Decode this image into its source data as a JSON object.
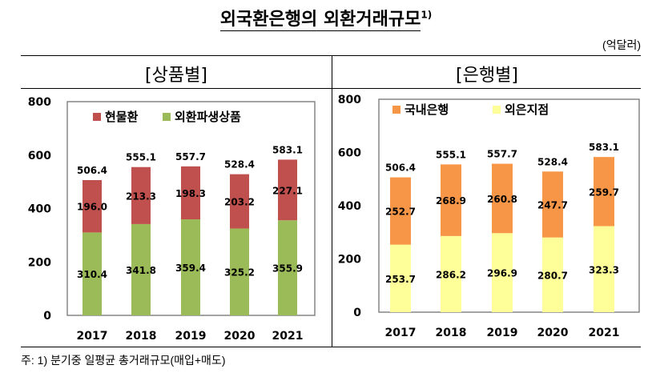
{
  "title": "외국환은행의 외환거래규모",
  "title_footnote_mark": "1)",
  "unit": "(억달러)",
  "footnote": "주: 1) 분기중 일평균 총거래규모(매입+매도)",
  "chart_data": [
    {
      "type": "bar",
      "stacked": true,
      "panel_title": "[상품별]",
      "categories": [
        "2017",
        "2018",
        "2019",
        "2020",
        "2021"
      ],
      "ylim": [
        0,
        800
      ],
      "yticks": [
        0,
        200,
        400,
        600,
        800
      ],
      "grid": false,
      "legend_position": "top-left",
      "series": [
        {
          "name": "외환파생상품",
          "color": "#9bbb59",
          "values": [
            310.4,
            341.8,
            359.4,
            325.2,
            355.9
          ]
        },
        {
          "name": "현물환",
          "color": "#c0504d",
          "values": [
            196.0,
            213.3,
            198.3,
            203.2,
            227.1
          ]
        }
      ],
      "totals": [
        506.4,
        555.1,
        557.7,
        528.4,
        583.1
      ]
    },
    {
      "type": "bar",
      "stacked": true,
      "panel_title": "[은행별]",
      "categories": [
        "2017",
        "2018",
        "2019",
        "2020",
        "2021"
      ],
      "ylim": [
        0,
        800
      ],
      "yticks": [
        0,
        200,
        400,
        600,
        800
      ],
      "grid": false,
      "legend_position": "top-left",
      "series": [
        {
          "name": "외은지점",
          "color": "#ffff99",
          "values": [
            253.7,
            286.2,
            296.9,
            280.7,
            323.3
          ]
        },
        {
          "name": "국내은행",
          "color": "#f79646",
          "values": [
            252.7,
            268.9,
            260.8,
            247.7,
            259.7
          ]
        }
      ],
      "totals": [
        506.4,
        555.1,
        557.7,
        528.4,
        583.1
      ]
    }
  ]
}
